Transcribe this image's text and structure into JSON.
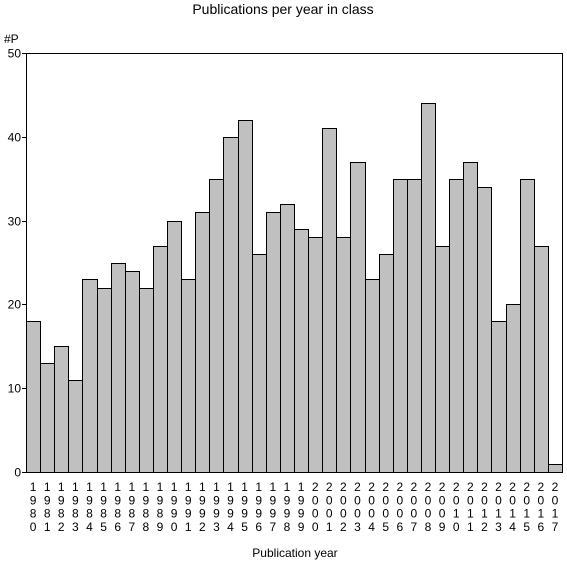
{
  "chart_data": {
    "type": "bar",
    "title": "Publications per year in class",
    "ylabel": "#P",
    "xlabel": "Publication year",
    "ylim": [
      0,
      50
    ],
    "yticks": [
      0,
      10,
      20,
      30,
      40,
      50
    ],
    "grid": false,
    "legend": "none",
    "colors": {
      "bar_fill": "#c0c0c0",
      "bar_stroke": "#000000"
    },
    "categories": [
      "1980",
      "1981",
      "1982",
      "1983",
      "1984",
      "1985",
      "1986",
      "1987",
      "1988",
      "1989",
      "1990",
      "1991",
      "1992",
      "1993",
      "1994",
      "1995",
      "1996",
      "1997",
      "1998",
      "1999",
      "2000",
      "2001",
      "2002",
      "2003",
      "2004",
      "2005",
      "2006",
      "2007",
      "2008",
      "2009",
      "2010",
      "2011",
      "2012",
      "2013",
      "2014",
      "2015",
      "2016",
      "2017"
    ],
    "values": [
      18,
      13,
      15,
      11,
      23,
      22,
      25,
      24,
      22,
      27,
      30,
      23,
      31,
      35,
      40,
      42,
      26,
      31,
      32,
      29,
      28,
      41,
      28,
      37,
      23,
      26,
      35,
      35,
      44,
      27,
      35,
      37,
      34,
      18,
      20,
      35,
      27,
      1
    ]
  }
}
